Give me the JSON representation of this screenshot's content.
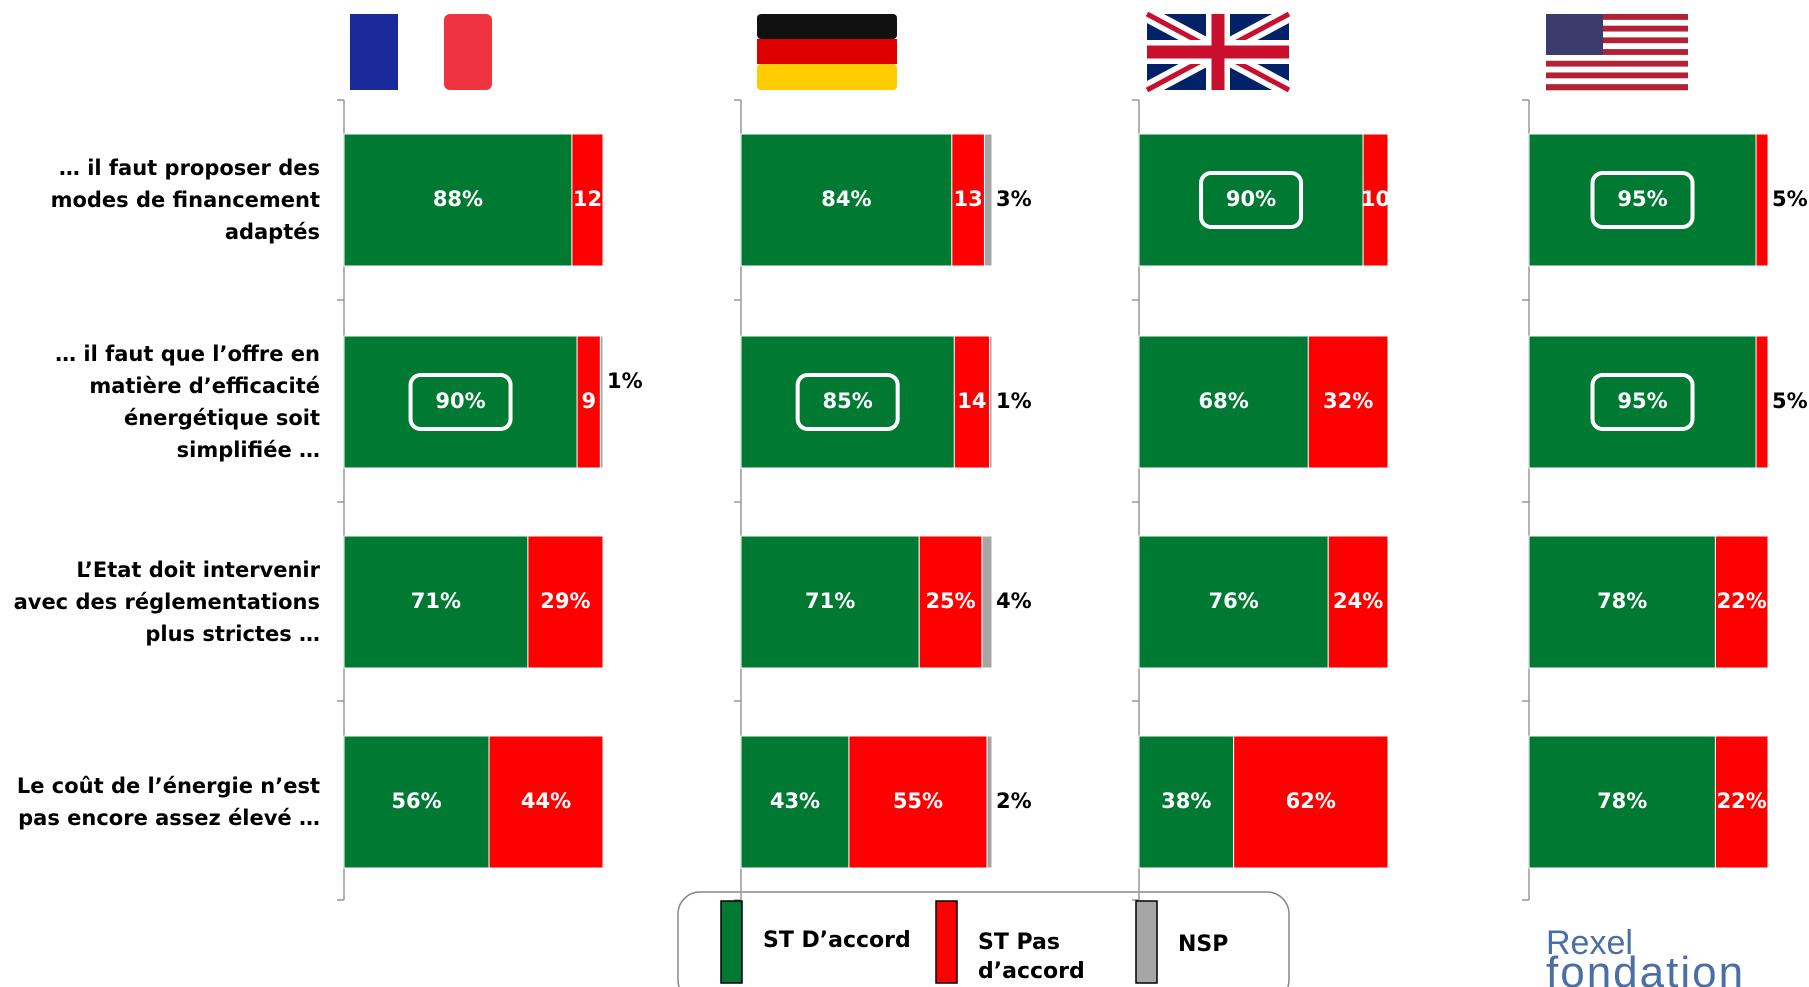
{
  "chart_data": {
    "type": "bar",
    "orientation": "horizontal",
    "stacked": true,
    "categories": [
      "… il faut proposer des\nmodes de financement\nadaptés",
      "… il faut que l’offre en\nmatière d’efficacité\nénergétique soit\nsimplifiée …",
      "L’Etat doit intervenir\navec des réglementations\nplus strictes …",
      "Le coût de l’énergie n’est\npas encore assez élevé …"
    ],
    "series": [
      {
        "name": "ST D’accord",
        "color": "#007a33"
      },
      {
        "name": "ST Pas\nd’accord",
        "color": "#ff0000"
      },
      {
        "name": "NSP",
        "color": "#a6a6a6"
      }
    ],
    "panels": [
      {
        "highlight": [
          1
        ],
        "series": [
          {
            "values": [
              88,
              90,
              71,
              56
            ],
            "value_labels": [
              "88%",
              "90%",
              "71%",
              "56%"
            ]
          },
          {
            "values": [
              12,
              9,
              29,
              44
            ],
            "value_labels": [
              "12",
              "9",
              "29%",
              "44%"
            ]
          },
          {
            "values": [
              null,
              1,
              null,
              null
            ],
            "value_labels": [
              null,
              "1%",
              null,
              null
            ]
          }
        ]
      },
      {
        "highlight": [
          1
        ],
        "series": [
          {
            "values": [
              84,
              85,
              71,
              43
            ],
            "value_labels": [
              "84%",
              "85%",
              "71%",
              "43%"
            ]
          },
          {
            "values": [
              13,
              14,
              25,
              55
            ],
            "value_labels": [
              "13",
              "14",
              "25%",
              "55%"
            ]
          },
          {
            "values": [
              3,
              1,
              4,
              2
            ],
            "value_labels": [
              "3%",
              "1%",
              "4%",
              "2%"
            ]
          }
        ]
      },
      {
        "highlight": [
          0
        ],
        "series": [
          {
            "values": [
              90,
              68,
              76,
              38
            ],
            "value_labels": [
              "90%",
              "68%",
              "76%",
              "38%"
            ]
          },
          {
            "values": [
              10,
              32,
              24,
              62
            ],
            "value_labels": [
              "10",
              "32%",
              "24%",
              "62%"
            ]
          },
          {
            "values": [
              null,
              null,
              null,
              null
            ],
            "value_labels": [
              null,
              null,
              null,
              null
            ]
          }
        ]
      },
      {
        "highlight": [
          0,
          1
        ],
        "series": [
          {
            "values": [
              95,
              95,
              78,
              78
            ],
            "value_labels": [
              "95%",
              "95%",
              "78%",
              "78%"
            ]
          },
          {
            "values": [
              5,
              5,
              22,
              22
            ],
            "value_labels": [
              "5%",
              "5%",
              "22%",
              "22%"
            ]
          },
          {
            "values": [
              null,
              null,
              null,
              null
            ],
            "value_labels": [
              null,
              null,
              null,
              null
            ]
          }
        ]
      }
    ],
    "logo": [
      "Rexel",
      "fondation"
    ]
  }
}
